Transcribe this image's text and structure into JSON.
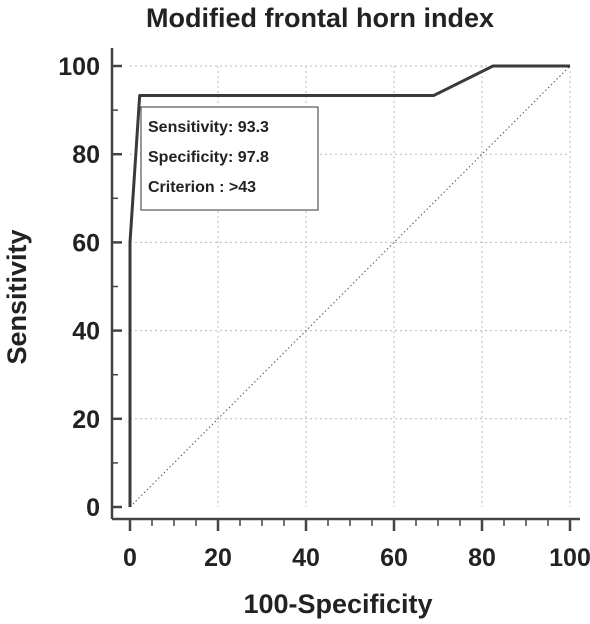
{
  "chart_data": {
    "type": "line",
    "title": "Modified frontal horn index",
    "xlabel": "100-Specificity",
    "ylabel": "Sensitivity",
    "xlim": [
      0,
      100
    ],
    "ylim": [
      0,
      100
    ],
    "xticks": [
      0,
      20,
      40,
      60,
      80,
      100
    ],
    "yticks": [
      0,
      20,
      40,
      60,
      80,
      100
    ],
    "grid": true,
    "series": [
      {
        "name": "",
        "x": [
          0,
          0,
          2.2,
          69,
          82.5,
          100
        ],
        "y": [
          0,
          60,
          93.3,
          93.3,
          100,
          100
        ]
      }
    ],
    "reference_line": {
      "x": [
        0,
        100
      ],
      "y": [
        0,
        100
      ]
    },
    "annotation": {
      "lines": [
        "Sensitivity: 93.3",
        "Specificity: 97.8",
        "Criterion : >43"
      ]
    },
    "colors": {
      "curve": "#3a3a3a",
      "reference": "#555555",
      "grid": "#bbbbbb",
      "axis": "#444444"
    }
  }
}
